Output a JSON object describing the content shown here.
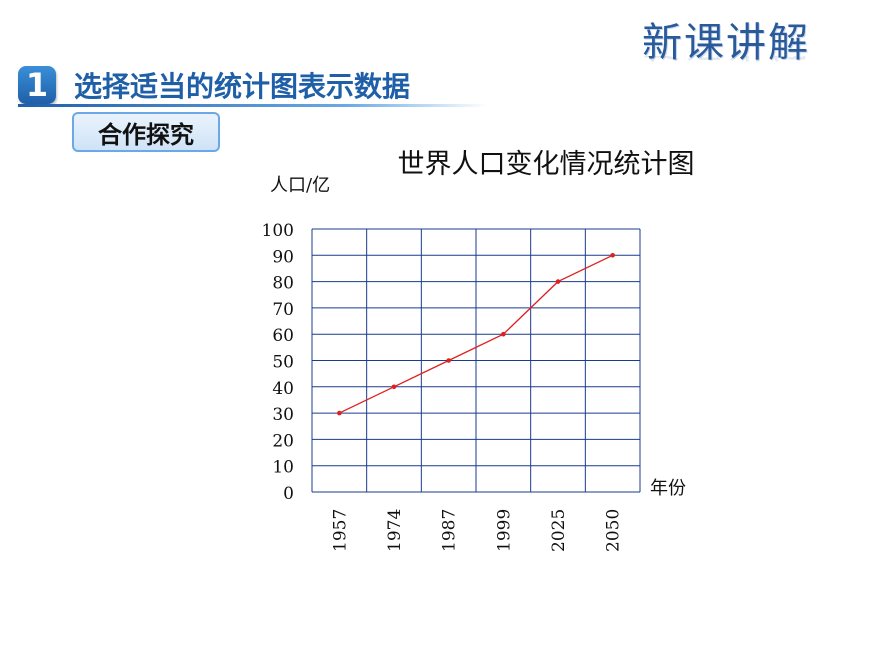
{
  "header": {
    "lesson_tag": "新课讲解",
    "section_number": "1",
    "section_title": "选择适当的统计图表示数据",
    "subsection": "合作探究"
  },
  "colors": {
    "brand_blue": "#1f5fa8",
    "line_red": "#e02020",
    "grid": "#1a3c8c"
  },
  "chart_data": {
    "type": "line",
    "title": "世界人口变化情况统计图",
    "ylabel": "人口/亿",
    "xlabel": "年份",
    "categories": [
      "1957",
      "1974",
      "1987",
      "1999",
      "2025",
      "2050"
    ],
    "values": [
      30,
      40,
      50,
      60,
      80,
      90
    ],
    "ylim": [
      0,
      100
    ],
    "yticks": [
      0,
      10,
      20,
      30,
      40,
      50,
      60,
      70,
      80,
      90,
      100
    ],
    "grid": true,
    "legend": "none"
  }
}
